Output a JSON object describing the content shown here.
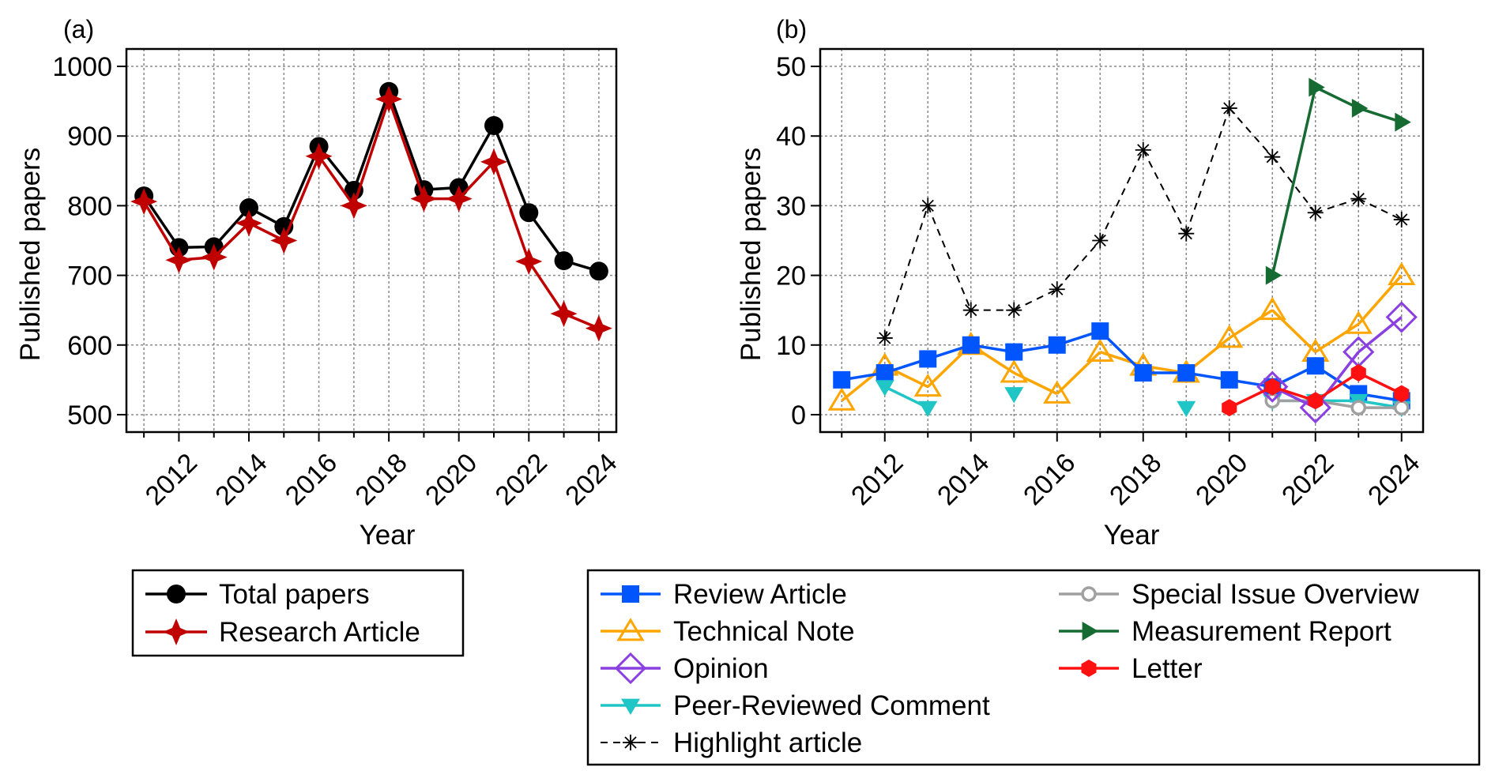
{
  "chart_data": [
    {
      "panel_label": "(a)",
      "type": "line",
      "xlabel": "Year",
      "ylabel": "Published papers",
      "xlim": [
        2010.5,
        2024.5
      ],
      "ylim": [
        475,
        1025
      ],
      "x_ticks": [
        2012,
        2014,
        2016,
        2018,
        2020,
        2022,
        2024
      ],
      "y_ticks": [
        500,
        600,
        700,
        800,
        900,
        1000
      ],
      "grid": true,
      "series": [
        {
          "name": "Total papers",
          "color": "#000000",
          "marker": "circle",
          "dashed": false,
          "x": [
            2011,
            2012,
            2013,
            2014,
            2015,
            2016,
            2017,
            2018,
            2019,
            2020,
            2021,
            2022,
            2023,
            2024
          ],
          "y": [
            814,
            740,
            741,
            797,
            770,
            885,
            822,
            964,
            823,
            826,
            915,
            790,
            721,
            706
          ]
        },
        {
          "name": "Research Article",
          "color": "#c00000",
          "marker": "star4",
          "dashed": false,
          "x": [
            2011,
            2012,
            2013,
            2014,
            2015,
            2016,
            2017,
            2018,
            2019,
            2020,
            2021,
            2022,
            2023,
            2024
          ],
          "y": [
            806,
            722,
            726,
            775,
            750,
            871,
            800,
            953,
            810,
            810,
            863,
            720,
            645,
            624
          ]
        }
      ]
    },
    {
      "panel_label": "(b)",
      "type": "line",
      "xlabel": "Year",
      "ylabel": "Published papers",
      "xlim": [
        2010.5,
        2024.5
      ],
      "ylim": [
        -2.5,
        52.5
      ],
      "x_ticks": [
        2012,
        2014,
        2016,
        2018,
        2020,
        2022,
        2024
      ],
      "y_ticks": [
        0,
        10,
        20,
        30,
        40,
        50
      ],
      "grid": true,
      "series": [
        {
          "name": "Highlight article",
          "color": "#000000",
          "marker": "asterisk",
          "dashed": true,
          "x": [
            2012,
            2013,
            2014,
            2015,
            2016,
            2017,
            2018,
            2019,
            2020,
            2021,
            2022,
            2023,
            2024
          ],
          "y": [
            11,
            30,
            15,
            15,
            18,
            25,
            38,
            26,
            44,
            37,
            29,
            31,
            28
          ]
        },
        {
          "name": "Technical Note",
          "color": "#ffa500",
          "marker": "triangle-up-open",
          "dashed": false,
          "x": [
            2011,
            2012,
            2013,
            2014,
            2015,
            2016,
            2017,
            2018,
            2019,
            2020,
            2021,
            2022,
            2023,
            2024
          ],
          "y": [
            2,
            7,
            4,
            10,
            6,
            3,
            9,
            7,
            6,
            11,
            15,
            9,
            13,
            20
          ]
        },
        {
          "name": "Review Article",
          "color": "#0055ff",
          "marker": "square",
          "dashed": false,
          "x": [
            2011,
            2012,
            2013,
            2014,
            2015,
            2016,
            2017,
            2018,
            2019,
            2020,
            2021,
            2022,
            2023,
            2024
          ],
          "y": [
            5,
            6,
            8,
            10,
            9,
            10,
            12,
            6,
            6,
            5,
            4,
            7,
            3,
            2
          ]
        },
        {
          "name": "Peer-Reviewed Comment",
          "color": "#20c5c5",
          "marker": "triangle-down",
          "dashed": false,
          "x": [
            2012,
            2013,
            null,
            2015,
            null,
            null,
            null,
            2019,
            null,
            2021,
            2022,
            2023,
            2024
          ],
          "y": [
            4,
            1,
            null,
            3,
            null,
            null,
            null,
            1,
            null,
            2,
            2,
            2,
            1
          ]
        },
        {
          "name": "Special Issue Overview",
          "color": "#a0a0a0",
          "marker": "circle-open",
          "dashed": false,
          "x": [
            2021,
            2022,
            2023,
            2024
          ],
          "y": [
            2,
            2,
            1,
            1
          ]
        },
        {
          "name": "Opinion",
          "color": "#8a3fe0",
          "marker": "diamond-open",
          "dashed": false,
          "x": [
            2021,
            2022,
            2023,
            2024
          ],
          "y": [
            4,
            1,
            9,
            14
          ]
        },
        {
          "name": "Letter",
          "color": "#ff1111",
          "marker": "hexagon",
          "dashed": false,
          "x": [
            2020,
            2021,
            2022,
            2023,
            2024
          ],
          "y": [
            1,
            4,
            2,
            6,
            3
          ]
        },
        {
          "name": "Measurement Report",
          "color": "#156b32",
          "marker": "triangle-right",
          "dashed": false,
          "x": [
            2021,
            2022,
            2023,
            2024
          ],
          "y": [
            20,
            47,
            44,
            42
          ]
        }
      ]
    }
  ],
  "legends": {
    "a": [
      "Total papers",
      "Research Article"
    ],
    "b_left": [
      "Review Article",
      "Technical Note",
      "Opinion",
      "Peer-Reviewed Comment",
      "Highlight article"
    ],
    "b_right": [
      "Special Issue Overview",
      "Measurement Report",
      "Letter"
    ]
  }
}
